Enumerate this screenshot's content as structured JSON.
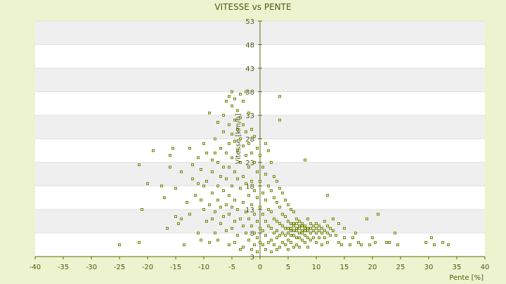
{
  "chart_data": {
    "type": "scatter",
    "title": "VITESSE vs PENTE",
    "xlabel": "Pente [%]",
    "ylabel": "Vitesse [km/h]",
    "xlim": [
      -40,
      40
    ],
    "ylim": [
      3,
      53
    ],
    "x_ticks": [
      "-40",
      "-35",
      "-30",
      "-25",
      "-20",
      "-15",
      "-10",
      "-5",
      "0",
      "5",
      "10",
      "15",
      "20",
      "25",
      "30",
      "35",
      "40"
    ],
    "y_ticks": [
      "3",
      "8",
      "13",
      "18",
      "23",
      "28",
      "33",
      "38",
      "43",
      "48",
      "53"
    ],
    "grid": true,
    "legend": "none",
    "series": [
      {
        "color": "#6b7d14",
        "points": [
          [
            -25,
            5.5
          ],
          [
            -21.5,
            6
          ],
          [
            -21,
            13
          ],
          [
            -21.5,
            22.5
          ],
          [
            -19,
            25.5
          ],
          [
            -20,
            18.5
          ],
          [
            -17.5,
            18
          ],
          [
            -17,
            15.5
          ],
          [
            -16.5,
            9
          ],
          [
            -16,
            24.5
          ],
          [
            -16,
            22
          ],
          [
            -15.5,
            26
          ],
          [
            -15,
            11.5
          ],
          [
            -15,
            17.5
          ],
          [
            -14.5,
            10
          ],
          [
            -14,
            11
          ],
          [
            -14,
            21
          ],
          [
            -13.5,
            5.5
          ],
          [
            -13,
            14.5
          ],
          [
            -12.5,
            12
          ],
          [
            -12.5,
            26
          ],
          [
            -12,
            22.5
          ],
          [
            -12,
            19.5
          ],
          [
            -11.5,
            16
          ],
          [
            -11,
            24
          ],
          [
            -11,
            8
          ],
          [
            -11,
            18.5
          ],
          [
            -10.5,
            15
          ],
          [
            -10.5,
            21.5
          ],
          [
            -10.5,
            6.5
          ],
          [
            -10,
            27
          ],
          [
            -10,
            13
          ],
          [
            -10,
            18
          ],
          [
            -9.5,
            10.5
          ],
          [
            -9.5,
            25
          ],
          [
            -9.5,
            19
          ],
          [
            -9,
            33.5
          ],
          [
            -9,
            14
          ],
          [
            -9,
            6
          ],
          [
            -8.5,
            21
          ],
          [
            -8.5,
            23.5
          ],
          [
            -8.5,
            11
          ],
          [
            -8.5,
            16.5
          ],
          [
            -8,
            28
          ],
          [
            -8,
            12.5
          ],
          [
            -8,
            25
          ],
          [
            -8,
            8
          ],
          [
            -7.5,
            18
          ],
          [
            -7.5,
            31.5
          ],
          [
            -7.5,
            15
          ],
          [
            -7.5,
            23
          ],
          [
            -7.5,
            6.5
          ],
          [
            -7,
            26
          ],
          [
            -7,
            20
          ],
          [
            -7,
            10
          ],
          [
            -7,
            13.5
          ],
          [
            -6.5,
            22
          ],
          [
            -6.5,
            29.5
          ],
          [
            -6.5,
            17
          ],
          [
            -6.5,
            33
          ],
          [
            -6.5,
            11.5
          ],
          [
            -6,
            25
          ],
          [
            -6,
            36
          ],
          [
            -6,
            19.5
          ],
          [
            -6,
            14
          ],
          [
            -6,
            8.5
          ],
          [
            -5.5,
            37
          ],
          [
            -5.5,
            31
          ],
          [
            -5.5,
            27
          ],
          [
            -5.5,
            22
          ],
          [
            -5.5,
            16
          ],
          [
            -5.5,
            12
          ],
          [
            -5.5,
            5.5
          ],
          [
            -5,
            38
          ],
          [
            -5,
            35
          ],
          [
            -5,
            29
          ],
          [
            -5,
            24
          ],
          [
            -5,
            18
          ],
          [
            -5,
            13.5
          ],
          [
            -5,
            9
          ],
          [
            -4.5,
            36.5
          ],
          [
            -4.5,
            32
          ],
          [
            -4.5,
            27.5
          ],
          [
            -4.5,
            21
          ],
          [
            -4.5,
            15
          ],
          [
            -4.5,
            10.5
          ],
          [
            -4.5,
            6
          ],
          [
            -4,
            34
          ],
          [
            -4,
            30
          ],
          [
            -4,
            25.5
          ],
          [
            -4,
            19.5
          ],
          [
            -4,
            13
          ],
          [
            -4,
            7.5
          ],
          [
            -3.5,
            37.5
          ],
          [
            -3.5,
            32.5
          ],
          [
            -3.5,
            28
          ],
          [
            -3.5,
            23
          ],
          [
            -3.5,
            17.5
          ],
          [
            -3.5,
            11
          ],
          [
            -3.5,
            4.5
          ],
          [
            -3,
            36
          ],
          [
            -3,
            31
          ],
          [
            -3,
            26.5
          ],
          [
            -3,
            20
          ],
          [
            -3,
            14.5
          ],
          [
            -3,
            9.5
          ],
          [
            -3,
            5
          ],
          [
            -2.5,
            38
          ],
          [
            -2.5,
            29.5
          ],
          [
            -2.5,
            24.5
          ],
          [
            -2.5,
            18.5
          ],
          [
            -2.5,
            12.5
          ],
          [
            -2.5,
            8
          ],
          [
            -2,
            33.5
          ],
          [
            -2,
            27
          ],
          [
            -2,
            22
          ],
          [
            -2,
            16
          ],
          [
            -2,
            11
          ],
          [
            -2,
            6.5
          ],
          [
            -1.5,
            30
          ],
          [
            -1.5,
            25
          ],
          [
            -1.5,
            19
          ],
          [
            -1.5,
            14
          ],
          [
            -1.5,
            9.5
          ],
          [
            -1.5,
            4.5
          ],
          [
            -1,
            28.5
          ],
          [
            -1,
            23
          ],
          [
            -1,
            17
          ],
          [
            -1,
            12
          ],
          [
            -1,
            8
          ],
          [
            -1,
            5.5
          ],
          [
            -0.5,
            26
          ],
          [
            -0.5,
            21
          ],
          [
            -0.5,
            15.5
          ],
          [
            -0.5,
            10.5
          ],
          [
            -0.5,
            7
          ],
          [
            -0.5,
            4
          ],
          [
            0,
            24.5
          ],
          [
            0,
            19
          ],
          [
            0,
            13.5
          ],
          [
            0,
            9
          ],
          [
            0,
            6
          ],
          [
            0.5,
            22
          ],
          [
            0.5,
            16.5
          ],
          [
            0.5,
            12
          ],
          [
            0.5,
            8.5
          ],
          [
            0.5,
            5.5
          ],
          [
            1,
            27
          ],
          [
            1,
            20.5
          ],
          [
            1,
            15
          ],
          [
            1,
            10.5
          ],
          [
            1,
            7.5
          ],
          [
            1,
            4.5
          ],
          [
            1.5,
            25.5
          ],
          [
            1.5,
            18
          ],
          [
            1.5,
            13
          ],
          [
            1.5,
            9.5
          ],
          [
            1.5,
            6
          ],
          [
            2,
            23
          ],
          [
            2,
            17
          ],
          [
            2,
            12.5
          ],
          [
            2,
            9
          ],
          [
            2,
            6.5
          ],
          [
            2,
            4
          ],
          [
            2.5,
            20
          ],
          [
            2.5,
            15.5
          ],
          [
            2.5,
            11
          ],
          [
            2.5,
            8
          ],
          [
            2.5,
            5.5
          ],
          [
            3,
            19
          ],
          [
            3,
            14.5
          ],
          [
            3,
            10.5
          ],
          [
            3,
            8.5
          ],
          [
            3,
            7
          ],
          [
            3,
            4.5
          ],
          [
            3.5,
            37
          ],
          [
            3.5,
            32
          ],
          [
            3.5,
            17.5
          ],
          [
            3.5,
            13.5
          ],
          [
            3.5,
            10
          ],
          [
            3.5,
            7.5
          ],
          [
            3.5,
            5
          ],
          [
            4,
            16.5
          ],
          [
            4,
            12
          ],
          [
            4,
            9.5
          ],
          [
            4,
            8
          ],
          [
            4,
            6
          ],
          [
            4.5,
            15
          ],
          [
            4.5,
            11.5
          ],
          [
            4.5,
            9
          ],
          [
            4.5,
            7.5
          ],
          [
            4.5,
            5.5
          ],
          [
            5,
            14
          ],
          [
            5,
            10.5
          ],
          [
            5,
            9
          ],
          [
            5,
            8
          ],
          [
            5,
            6.5
          ],
          [
            5,
            4.5
          ],
          [
            5.5,
            13
          ],
          [
            5.5,
            10
          ],
          [
            5.5,
            9
          ],
          [
            5.5,
            8.5
          ],
          [
            5.5,
            7.5
          ],
          [
            5.5,
            6
          ],
          [
            6,
            12.5
          ],
          [
            6,
            10
          ],
          [
            6,
            9.5
          ],
          [
            6,
            8.5
          ],
          [
            6,
            7.5
          ],
          [
            6,
            5
          ],
          [
            6.5,
            11
          ],
          [
            6.5,
            10
          ],
          [
            6.5,
            9
          ],
          [
            6.5,
            8.5
          ],
          [
            6.5,
            7
          ],
          [
            6.5,
            5.5
          ],
          [
            7,
            10.5
          ],
          [
            7,
            9.5
          ],
          [
            7,
            9
          ],
          [
            7,
            8
          ],
          [
            7,
            7
          ],
          [
            7,
            5
          ],
          [
            7.5,
            10
          ],
          [
            7.5,
            9.5
          ],
          [
            7.5,
            8.5
          ],
          [
            7.5,
            8
          ],
          [
            7.5,
            6.5
          ],
          [
            8,
            9.5
          ],
          [
            8,
            9
          ],
          [
            8,
            8.5
          ],
          [
            8,
            7.5
          ],
          [
            8,
            6
          ],
          [
            8,
            23.5
          ],
          [
            8.5,
            11
          ],
          [
            8.5,
            9
          ],
          [
            8.5,
            8.5
          ],
          [
            8.5,
            7
          ],
          [
            8.5,
            5
          ],
          [
            9,
            10
          ],
          [
            9,
            9
          ],
          [
            9,
            8
          ],
          [
            9,
            6.5
          ],
          [
            9.5,
            9.5
          ],
          [
            9.5,
            8.5
          ],
          [
            9.5,
            7
          ],
          [
            10,
            10
          ],
          [
            10,
            9
          ],
          [
            10,
            8
          ],
          [
            10,
            6
          ],
          [
            10.5,
            9.5
          ],
          [
            10.5,
            8.5
          ],
          [
            10.5,
            7
          ],
          [
            11,
            9
          ],
          [
            11,
            8
          ],
          [
            11,
            5.5
          ],
          [
            11.5,
            10.5
          ],
          [
            11.5,
            8.5
          ],
          [
            11.5,
            7
          ],
          [
            12,
            16
          ],
          [
            12,
            9.5
          ],
          [
            12,
            8
          ],
          [
            12,
            6
          ],
          [
            12.5,
            9
          ],
          [
            12.5,
            7.5
          ],
          [
            13,
            8.5
          ],
          [
            13,
            11
          ],
          [
            13.5,
            7.5
          ],
          [
            14,
            10
          ],
          [
            14,
            6
          ],
          [
            14.5,
            5.5
          ],
          [
            15,
            9
          ],
          [
            15,
            7
          ],
          [
            16,
            5.5
          ],
          [
            16.5,
            7
          ],
          [
            17,
            8
          ],
          [
            17.5,
            6
          ],
          [
            18,
            5.5
          ],
          [
            19,
            11
          ],
          [
            19.5,
            5.5
          ],
          [
            20,
            7
          ],
          [
            20.5,
            6
          ],
          [
            21,
            12
          ],
          [
            22.5,
            6
          ],
          [
            23,
            6
          ],
          [
            24,
            8
          ],
          [
            24.5,
            5.5
          ],
          [
            29.5,
            6
          ],
          [
            30.5,
            7
          ],
          [
            31,
            5.5
          ],
          [
            32.5,
            6
          ],
          [
            33.5,
            5.5
          ]
        ]
      }
    ]
  }
}
